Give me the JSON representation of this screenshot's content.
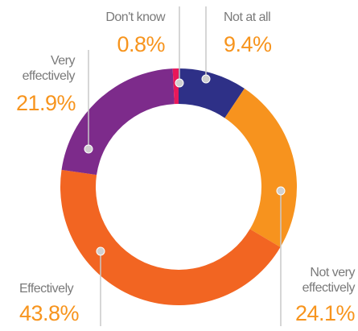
{
  "chart_data": {
    "type": "donut",
    "categories": [
      "Not at all",
      "Not very effectively",
      "Effectively",
      "Very effectively",
      "Don't know"
    ],
    "values": [
      9.4,
      24.1,
      43.8,
      21.9,
      0.8
    ],
    "value_labels": [
      "9.4%",
      "24.1%",
      "43.8%",
      "21.9%",
      "0.8%"
    ],
    "colors": [
      "#2e3087",
      "#f7931e",
      "#f26522",
      "#7d2b8b",
      "#e8185a"
    ],
    "label_color": "#f7941d"
  }
}
